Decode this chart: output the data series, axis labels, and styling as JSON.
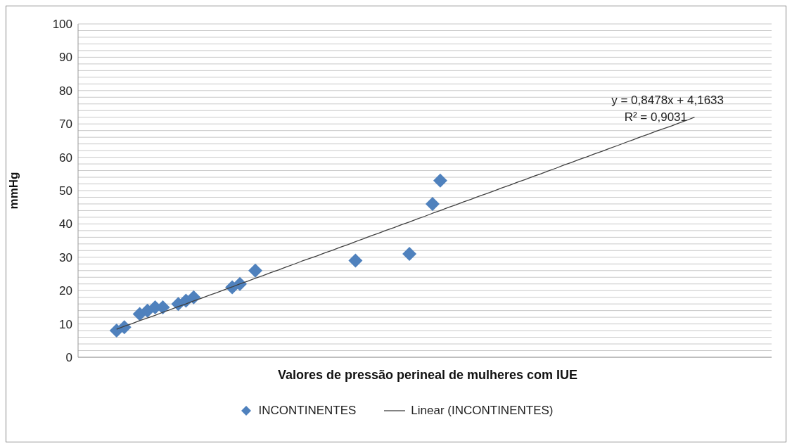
{
  "chart_data": {
    "type": "scatter",
    "xlabel": "Valores de pressão perineal de mulheres com IUE",
    "ylabel": "mmHg",
    "categories": [
      null,
      null,
      null,
      null,
      null,
      null,
      null,
      null,
      null,
      null,
      null,
      null,
      null,
      null,
      null,
      null,
      null,
      null,
      null,
      null,
      null,
      null,
      null,
      null,
      null,
      null,
      null,
      null,
      null,
      null,
      null,
      null,
      null,
      null,
      null,
      null,
      null,
      null,
      null,
      null,
      null,
      null,
      null,
      null,
      null,
      null,
      null,
      null,
      null,
      null,
      null,
      null,
      null,
      null,
      null,
      null,
      null,
      null,
      null,
      null,
      null,
      null,
      null,
      null,
      null,
      null,
      null,
      null,
      null,
      null,
      null,
      null,
      null,
      null,
      null,
      null,
      null,
      null,
      null,
      null,
      null,
      null,
      null,
      null,
      null,
      null,
      null,
      null,
      null,
      null,
      null
    ],
    "series": [
      {
        "name": "INCONTINENTES",
        "color": "#4f81bd",
        "marker": "diamond",
        "values": [
          null,
          null,
          null,
          null,
          null,
          8,
          9,
          null,
          13,
          14,
          15,
          15,
          null,
          16,
          17,
          18,
          null,
          null,
          null,
          null,
          21,
          22,
          null,
          26,
          null,
          null,
          null,
          null,
          null,
          null,
          null,
          null,
          null,
          null,
          null,
          null,
          29,
          null,
          null,
          null,
          null,
          null,
          null,
          31,
          null,
          null,
          46,
          53,
          null,
          null,
          null,
          null,
          null,
          null,
          null,
          null,
          null,
          null,
          null,
          null,
          null,
          null,
          null,
          null,
          null,
          null,
          null,
          null,
          null,
          null,
          null,
          null,
          null,
          null,
          null,
          null,
          null,
          null,
          null,
          null,
          null,
          null,
          null,
          null,
          null,
          null,
          null,
          null,
          null,
          null,
          null
        ]
      },
      {
        "name": "Linear (INCONTINENTES)",
        "type": "line",
        "color": "#404040",
        "marker": "none",
        "values": [
          null,
          null,
          null,
          null,
          null,
          8.4,
          9.3,
          10.1,
          11.0,
          11.8,
          12.6,
          13.5,
          14.3,
          15.2,
          16.0,
          16.9,
          17.7,
          18.6,
          19.4,
          20.3,
          21.1,
          22.0,
          22.8,
          23.7,
          24.5,
          25.4,
          26.2,
          27.1,
          27.9,
          28.8,
          29.6,
          30.4,
          31.3,
          32.1,
          33.0,
          33.8,
          34.7,
          35.5,
          36.4,
          37.2,
          38.1,
          38.9,
          39.8,
          40.6,
          41.5,
          42.3,
          43.2,
          44.0,
          44.9,
          45.7,
          46.6,
          47.4,
          48.3,
          49.1,
          49.9,
          50.8,
          51.6,
          52.5,
          53.3,
          54.2,
          55.0,
          55.9,
          56.7,
          57.6,
          58.4,
          59.3,
          60.1,
          61.0,
          61.8,
          62.7,
          63.5,
          64.4,
          65.2,
          66.1,
          66.9,
          67.8,
          68.6,
          69.4,
          70.3,
          71.1,
          72.0,
          null,
          null,
          null,
          null,
          null,
          null,
          null,
          null,
          null,
          null
        ]
      }
    ],
    "ylim": [
      0,
      100
    ],
    "yticks": [
      0,
      {
        "value": 2,
        "label": null
      },
      {
        "value": 4,
        "label": null
      },
      {
        "value": 6,
        "label": null
      },
      {
        "value": 8,
        "label": null
      },
      10,
      {
        "value": 12,
        "label": null
      },
      {
        "value": 14,
        "label": null
      },
      {
        "value": 16,
        "label": null
      },
      {
        "value": 18,
        "label": null
      },
      20,
      {
        "value": 22,
        "label": null
      },
      {
        "value": 24,
        "label": null
      },
      {
        "value": 26,
        "label": null
      },
      {
        "value": 28,
        "label": null
      },
      30,
      {
        "value": 32,
        "label": null
      },
      {
        "value": 34,
        "label": null
      },
      {
        "value": 36,
        "label": null
      },
      {
        "value": 38,
        "label": null
      },
      40,
      {
        "value": 42,
        "label": null
      },
      {
        "value": 44,
        "label": null
      },
      {
        "value": 46,
        "label": null
      },
      {
        "value": 48,
        "label": null
      },
      50,
      {
        "value": 52,
        "label": null
      },
      {
        "value": 54,
        "label": null
      },
      {
        "value": 56,
        "label": null
      },
      {
        "value": 58,
        "label": null
      },
      60,
      {
        "value": 62,
        "label": null
      },
      {
        "value": 64,
        "label": null
      },
      {
        "value": 66,
        "label": null
      },
      {
        "value": 68,
        "label": null
      },
      70,
      {
        "value": 72,
        "label": null
      },
      {
        "value": 74,
        "label": null
      },
      {
        "value": 76,
        "label": null
      },
      {
        "value": 78,
        "label": null
      },
      80,
      {
        "value": 82,
        "label": null
      },
      {
        "value": 84,
        "label": null
      },
      {
        "value": 86,
        "label": null
      },
      {
        "value": 88,
        "label": null
      },
      90,
      {
        "value": 92,
        "label": null
      },
      {
        "value": 94,
        "label": null
      },
      {
        "value": 96,
        "label": null
      },
      {
        "value": 98,
        "label": null
      },
      100
    ],
    "tick_labels": "y",
    "grid": "y",
    "legend": "bottom",
    "annotations": [
      "y = 0,8478x + 4,1633",
      "R² = 0,9031"
    ]
  }
}
